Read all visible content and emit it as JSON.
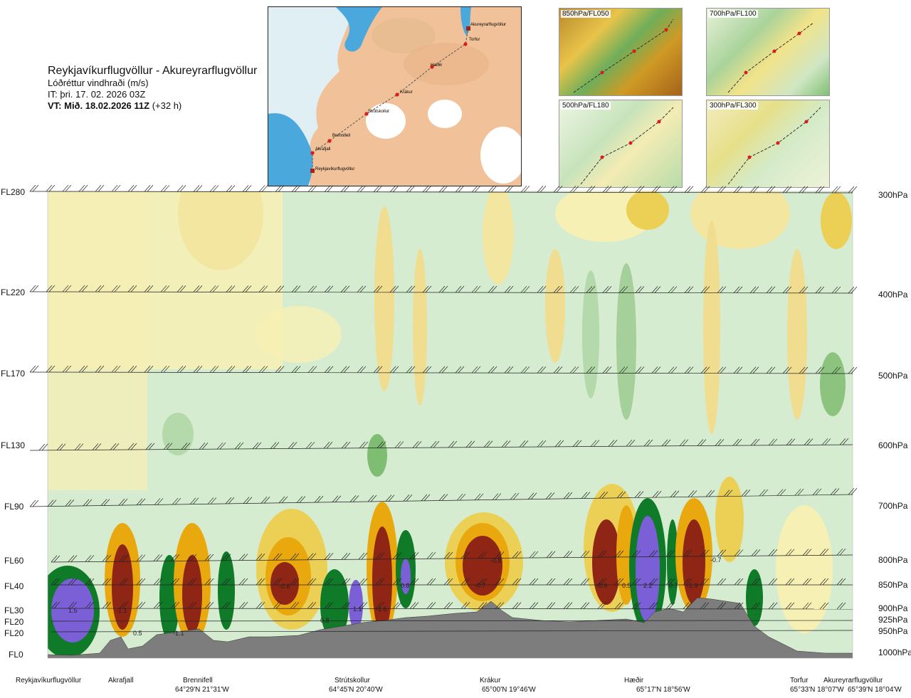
{
  "header": {
    "route": "Reykjavíkurflugvöllur - Akureyrarflugvöllur",
    "field": "Lóðréttur vindhraði (m/s)",
    "issue_time": "IT: þri. 17. 02. 2026 03Z",
    "valid_label": "VT: Mið. 18.02.2026 11Z",
    "valid_offset": "(+32 h)"
  },
  "map": {
    "waypoints": [
      "Akureyrarflugvöllur",
      "Torfur",
      "Hæðir",
      "Krákur",
      "Strútskollur",
      "Brennifell",
      "Akrafjall",
      "Reykjavíkurflugvöllur"
    ]
  },
  "thumbnails": [
    {
      "label": "850hPa/FL050"
    },
    {
      "label": "700hPa/FL100"
    },
    {
      "label": "500hPa/FL180"
    },
    {
      "label": "300hPa/FL300"
    }
  ],
  "chart_data": {
    "type": "heatmap",
    "title": "Lóðréttur vindhraði (m/s)",
    "left_axis_flight_levels": [
      "FL280",
      "FL220",
      "FL170",
      "FL130",
      "FL90",
      "FL60",
      "FL40",
      "FL30",
      "FL20",
      "FL20",
      "FL0"
    ],
    "right_axis_pressure": [
      "300hPa",
      "400hPa",
      "500hPa",
      "600hPa",
      "700hPa",
      "800hPa",
      "850hPa",
      "900hPa",
      "925hPa",
      "950hPa",
      "1000hPa"
    ],
    "waypoints": [
      {
        "name": "Reykjavíkurflugvöllur",
        "coord": ""
      },
      {
        "name": "Akrafjall",
        "coord": ""
      },
      {
        "name": "Brennifell",
        "coord": "64°29'N 21°31'W"
      },
      {
        "name": "Strútskollur",
        "coord": "64°45'N 20°40'W"
      },
      {
        "name": "Krákur",
        "coord": "65°00'N 19°46'W"
      },
      {
        "name": "Hæðir",
        "coord": "65°17'N 18°56'W"
      },
      {
        "name": "Torfur",
        "coord": "65°33'N 18°07'W"
      },
      {
        "name": "Akureyrarflugvöllur",
        "coord": "65°39'N 18°04'W"
      }
    ],
    "value_labels": [
      "1.5",
      "-1.1",
      "0.5",
      "-1.1",
      "-0.6",
      "0.8",
      "1.1",
      "-1.6",
      "0.8",
      "-0.8",
      "-0.7",
      "-0.6",
      "0.5",
      "2.2",
      "0.7",
      "-1.9",
      "-0.7"
    ],
    "colors": {
      "strong_up": "#7a5fd6",
      "up": "#0e7a25",
      "weak_up": "#cfe9cb",
      "weak_down": "#f6f0a6",
      "down": "#e9a90e",
      "strong_down": "#8e2515",
      "terrain": "#7d7d7d"
    }
  }
}
